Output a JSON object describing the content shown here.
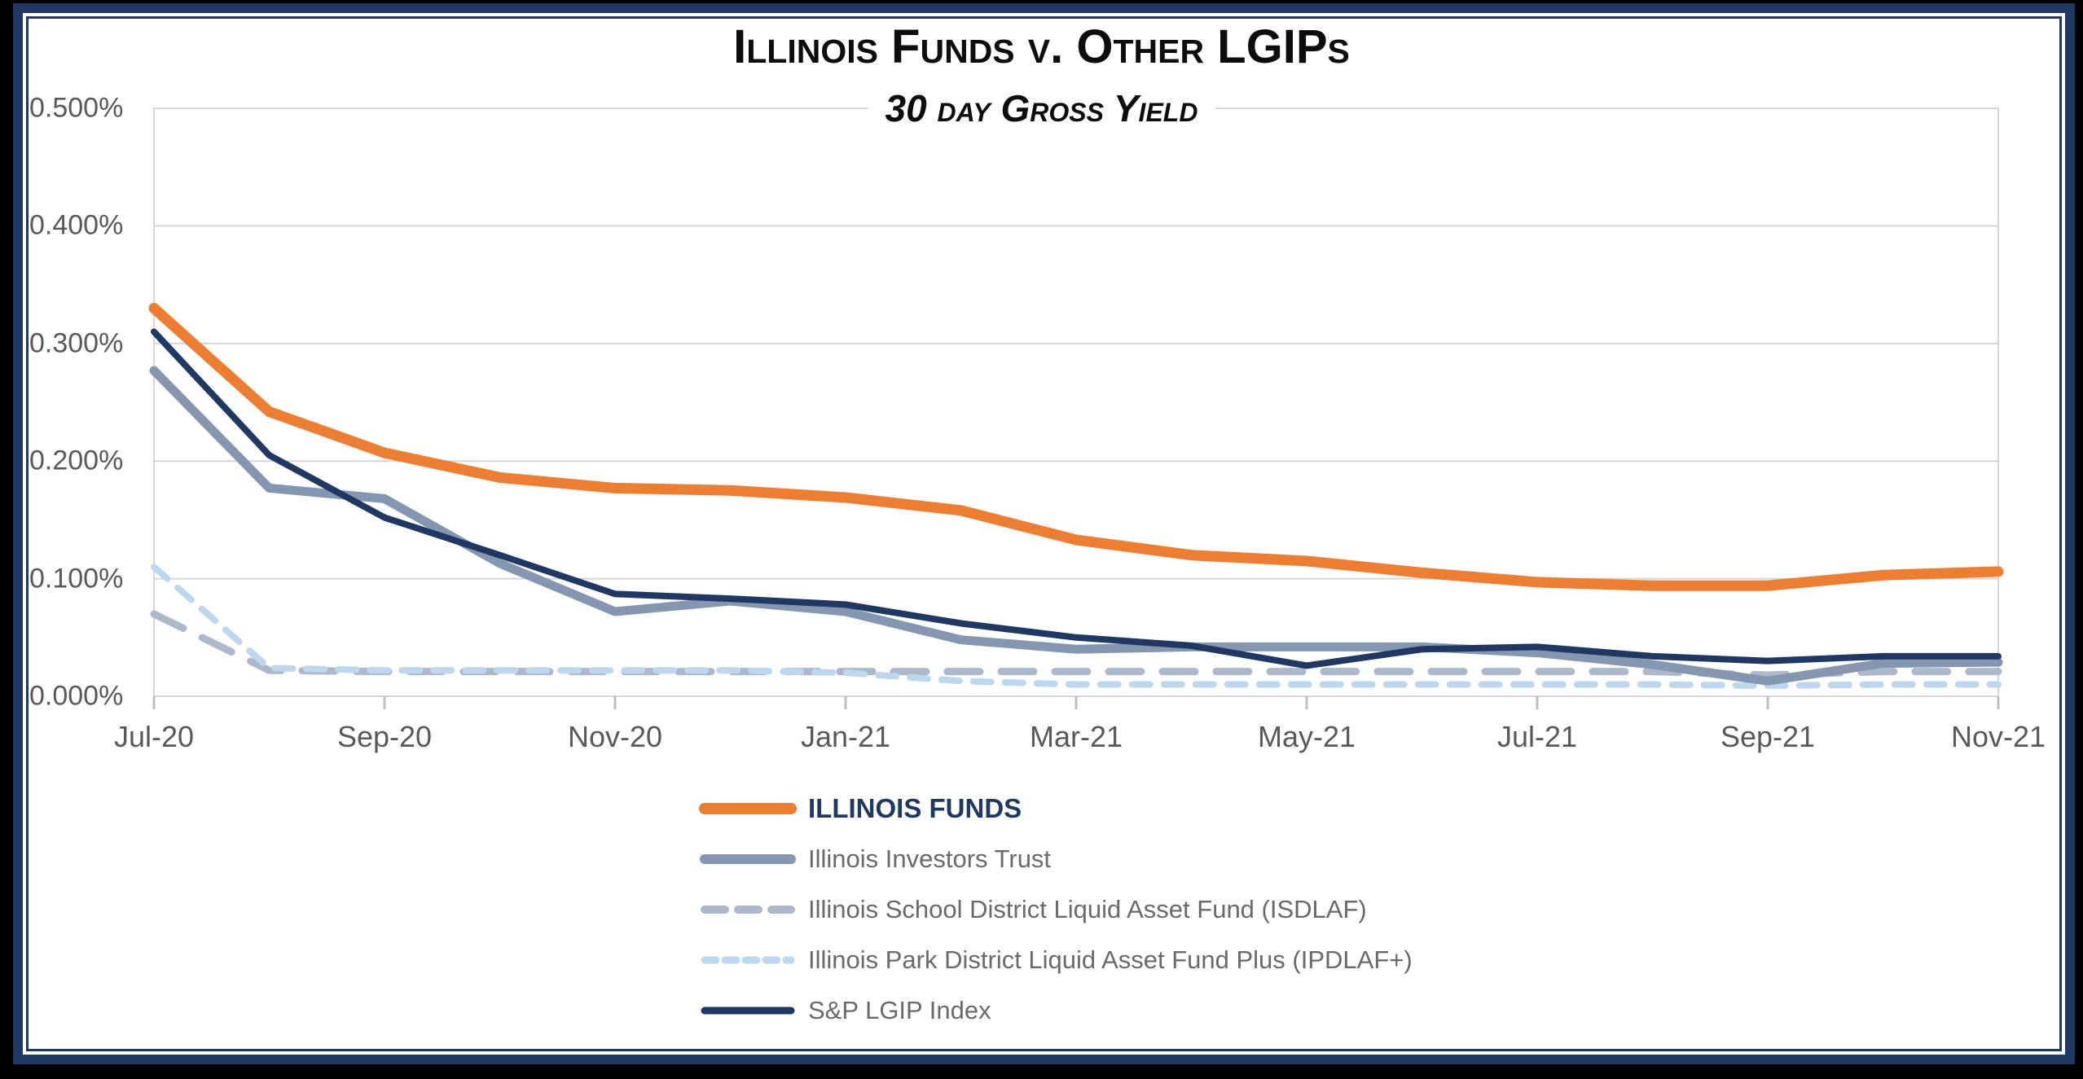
{
  "frame": {
    "outer_background": "#000000",
    "border_navy": "#203864",
    "border_white": "#ffffff",
    "chart_background": "#ffffff"
  },
  "title": "Illinois Funds v. Other LGIPs",
  "subtitle": "30 day Gross Yield",
  "chart_data": {
    "type": "line",
    "title": "Illinois Funds v. Other LGIPs",
    "subtitle": "30 day Gross Yield",
    "x": [
      "Jul-20",
      "Aug-20",
      "Sep-20",
      "Oct-20",
      "Nov-20",
      "Dec-20",
      "Jan-21",
      "Feb-21",
      "Mar-21",
      "Apr-21",
      "May-21",
      "Jun-21",
      "Jul-21",
      "Aug-21",
      "Sep-21",
      "Oct-21",
      "Nov-21"
    ],
    "x_tick_labels": [
      "Jul-20",
      "Sep-20",
      "Nov-20",
      "Jan-21",
      "Mar-21",
      "May-21",
      "Jul-21",
      "Sep-21",
      "Nov-21"
    ],
    "y_tick_labels": [
      "0.000%",
      "0.100%",
      "0.200%",
      "0.300%",
      "0.400%",
      "0.500%"
    ],
    "ylim": [
      0,
      0.5
    ],
    "y_unit": "%",
    "grid": true,
    "gridline_color": "#d6d6d6",
    "axis_tick_color": "#bfbfbf",
    "axis_text_color": "#595959",
    "legend_position": "bottom",
    "series": [
      {
        "name": "ILLINOIS FUNDS",
        "color": "#ED7D31",
        "width": 13,
        "dash": null,
        "legend_emphasis": true,
        "values": [
          0.33,
          0.242,
          0.207,
          0.186,
          0.177,
          0.175,
          0.169,
          0.158,
          0.133,
          0.12,
          0.115,
          0.105,
          0.097,
          0.094,
          0.094,
          0.103,
          0.106
        ]
      },
      {
        "name": "Illinois Investors Trust",
        "color": "#8496B0",
        "width": 11,
        "dash": null,
        "legend_emphasis": false,
        "values": [
          0.277,
          0.177,
          0.168,
          0.113,
          0.072,
          0.081,
          0.072,
          0.048,
          0.04,
          0.042,
          0.042,
          0.042,
          0.037,
          0.027,
          0.013,
          0.028,
          0.029
        ]
      },
      {
        "name": "Illinois School District Liquid Asset Fund (ISDLAF)",
        "color": "#ADB9CA",
        "width": 9,
        "dash": "40 26",
        "legend_emphasis": false,
        "values": [
          0.07,
          0.022,
          0.021,
          0.021,
          0.021,
          0.021,
          0.021,
          0.021,
          0.021,
          0.021,
          0.021,
          0.021,
          0.021,
          0.021,
          0.018,
          0.021,
          0.021
        ]
      },
      {
        "name": "Illinois Park District Liquid Asset Fund Plus (IPDLAF+)",
        "color": "#BDD7EE",
        "width": 8,
        "dash": "22 17",
        "legend_emphasis": false,
        "values": [
          0.11,
          0.024,
          0.022,
          0.022,
          0.022,
          0.022,
          0.02,
          0.013,
          0.01,
          0.01,
          0.01,
          0.01,
          0.01,
          0.01,
          0.009,
          0.01,
          0.01
        ]
      },
      {
        "name": "S&P LGIP Index",
        "color": "#1F3864",
        "width": 8,
        "dash": null,
        "legend_emphasis": false,
        "values": [
          0.31,
          0.205,
          0.152,
          0.12,
          0.087,
          0.083,
          0.078,
          0.062,
          0.05,
          0.043,
          0.026,
          0.04,
          0.042,
          0.034,
          0.03,
          0.034,
          0.034
        ]
      }
    ]
  }
}
